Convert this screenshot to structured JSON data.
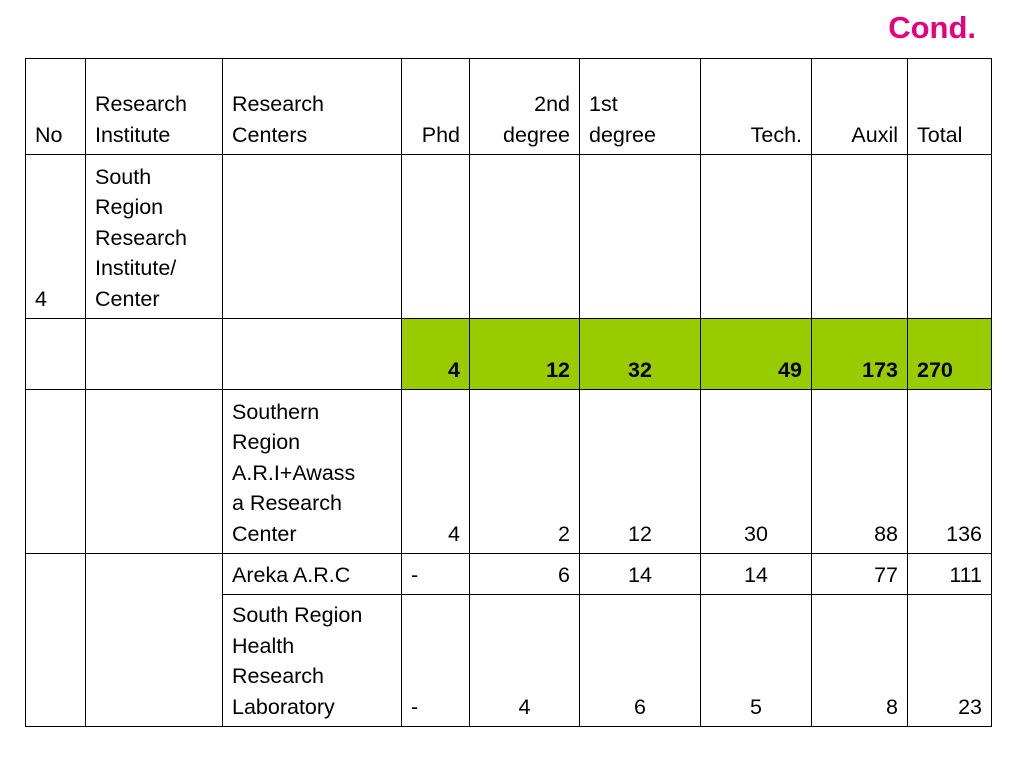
{
  "title": "Cond.",
  "header": {
    "no": "No",
    "institute": "Research\nInstitute",
    "centers": "Research\n Centers",
    "phd": "Phd",
    "second_degree": "2nd\ndegree",
    "first_degree": "1st\ndegree",
    "tech": "Tech.",
    "auxil": "Auxil",
    "total": "Total"
  },
  "institute_row": {
    "no": "4",
    "institute": "South\nRegion\nResearch\nInstitute/\nCenter"
  },
  "subtotal_row": {
    "phd": "4",
    "second_degree": "12",
    "first_degree": "32",
    "tech": "49",
    "auxil": "173",
    "total": "270"
  },
  "rows": [
    {
      "center": "Southern\nRegion\nA.R.I+Awass\na Research\nCenter",
      "phd": "4",
      "second_degree": "2",
      "first_degree": "12",
      "tech": "30",
      "auxil": "88",
      "total": "136"
    },
    {
      "center": "Areka A.R.C",
      "phd": "-",
      "second_degree": "6",
      "first_degree": "14",
      "tech": "14",
      "auxil": "77",
      "total": "111"
    },
    {
      "center": "South Region\n Health\n Research\n Laboratory",
      "phd": "-",
      "second_degree": "4",
      "first_degree": "6",
      "tech": "5",
      "auxil": "8",
      "total": "23"
    }
  ],
  "colors": {
    "title": "#e6007e",
    "highlight": "#99cc00"
  }
}
